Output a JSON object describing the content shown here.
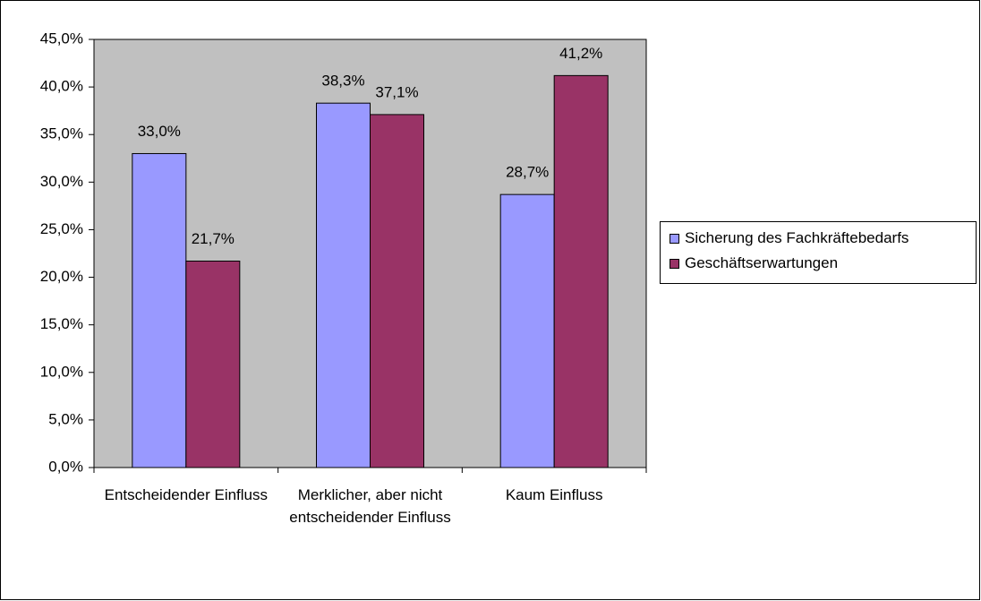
{
  "chart_data": {
    "type": "bar",
    "categories": [
      "Entscheidender Einfluss",
      "Merklicher, aber nicht entscheidender Einfluss",
      "Kaum Einfluss"
    ],
    "series": [
      {
        "name": "Sicherung des Fachkräftebedarfs",
        "color": "#9999ff",
        "values": [
          33.0,
          38.3,
          28.7
        ],
        "value_labels": [
          "33,0%",
          "38,3%",
          "28,7%"
        ]
      },
      {
        "name": "Geschäftserwartungen",
        "color": "#993366",
        "values": [
          21.7,
          37.1,
          41.2
        ],
        "value_labels": [
          "21,7%",
          "37,1%",
          "41,2%"
        ]
      }
    ],
    "ylim": [
      0,
      45
    ],
    "yticks": [
      {
        "value": 0,
        "label": "0,0%"
      },
      {
        "value": 5,
        "label": "5,0%"
      },
      {
        "value": 10,
        "label": "10,0%"
      },
      {
        "value": 15,
        "label": "15,0%"
      },
      {
        "value": 20,
        "label": "20,0%"
      },
      {
        "value": 25,
        "label": "25,0%"
      },
      {
        "value": 30,
        "label": "30,0%"
      },
      {
        "value": 35,
        "label": "35,0%"
      },
      {
        "value": 40,
        "label": "40,0%"
      },
      {
        "value": 45,
        "label": "45,0%"
      }
    ],
    "grid": false,
    "legend": "right"
  }
}
